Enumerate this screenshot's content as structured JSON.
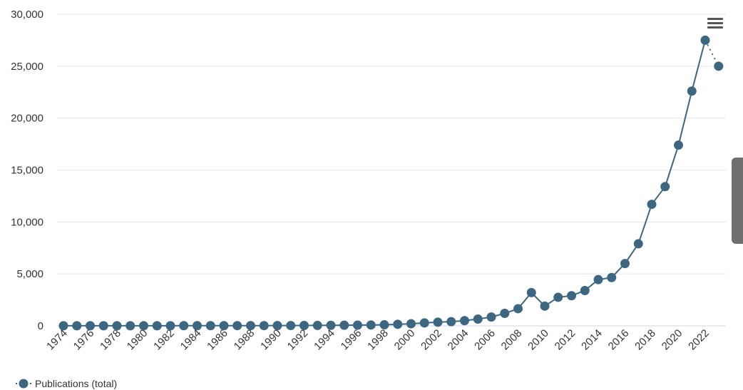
{
  "chart_data": {
    "type": "line",
    "x": [
      1974,
      1975,
      1976,
      1977,
      1978,
      1979,
      1980,
      1981,
      1982,
      1983,
      1984,
      1985,
      1986,
      1987,
      1988,
      1989,
      1990,
      1991,
      1992,
      1993,
      1994,
      1995,
      1996,
      1997,
      1998,
      1999,
      2000,
      2001,
      2002,
      2003,
      2004,
      2005,
      2006,
      2007,
      2008,
      2009,
      2010,
      2011,
      2012,
      2013,
      2014,
      2015,
      2016,
      2017,
      2018,
      2019,
      2020,
      2021,
      2022,
      2023
    ],
    "series": [
      {
        "name": "Publications (total)",
        "color": "#3d6680",
        "values": [
          10,
          10,
          10,
          10,
          10,
          10,
          10,
          10,
          10,
          15,
          15,
          15,
          15,
          20,
          20,
          20,
          25,
          30,
          35,
          40,
          50,
          60,
          70,
          80,
          100,
          150,
          200,
          280,
          350,
          400,
          500,
          650,
          850,
          1200,
          1650,
          3200,
          1900,
          2750,
          2900,
          3400,
          4450,
          4650,
          6000,
          7900,
          11700,
          13400,
          17400,
          22600,
          27500,
          25000
        ],
        "dotted_last_segment": true
      }
    ],
    "xticks": [
      "1974",
      "1976",
      "1978",
      "1980",
      "1982",
      "1984",
      "1986",
      "1988",
      "1990",
      "1992",
      "1994",
      "1996",
      "1998",
      "2000",
      "2002",
      "2004",
      "2006",
      "2008",
      "2010",
      "2012",
      "2014",
      "2016",
      "2018",
      "2020",
      "2022"
    ],
    "yticks": [
      "0",
      "5,000",
      "10,000",
      "15,000",
      "20,000",
      "25,000",
      "30,000"
    ],
    "ylim": [
      0,
      30000
    ],
    "grid": "horizontal",
    "legend": "bottom-left",
    "title": "",
    "xlabel": "",
    "ylabel": ""
  },
  "ui": {
    "menu_icon": "hamburger-menu-icon",
    "side_tab_icon": "side-panel-tab"
  }
}
